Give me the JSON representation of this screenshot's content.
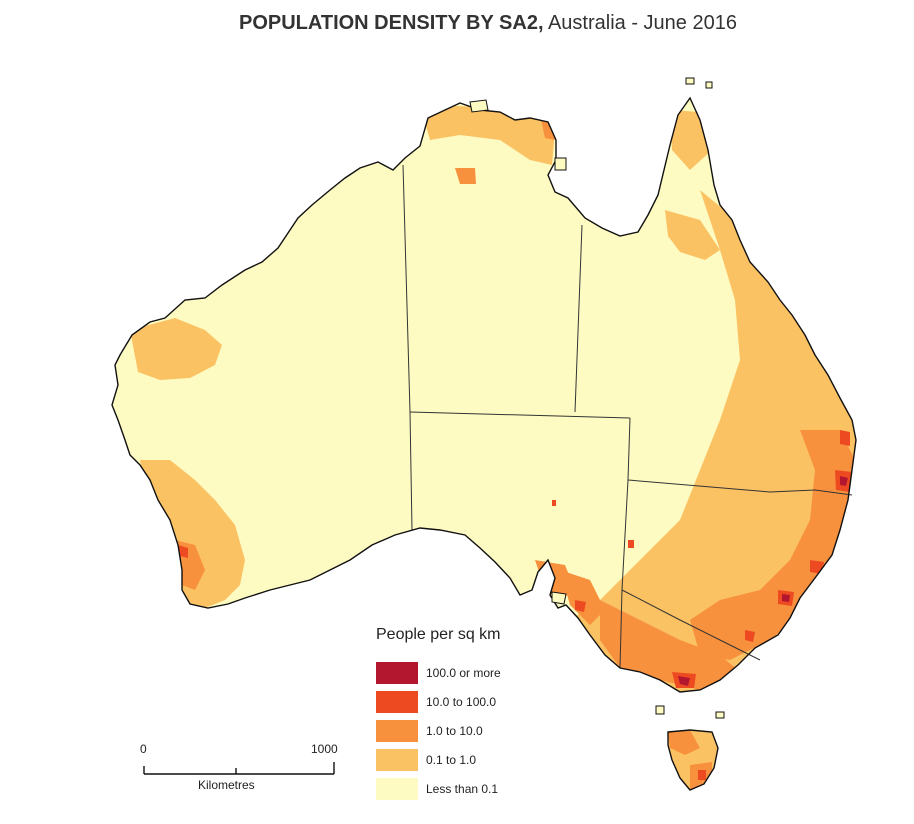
{
  "title": {
    "bold": "POPULATION DENSITY BY SA2,",
    "normal": " Australia - June 2016"
  },
  "legend": {
    "title": "People per sq km",
    "items": [
      {
        "label": "100.0 or more",
        "color": "#b3162f"
      },
      {
        "label": "10.0 to 100.0",
        "color": "#ee4a22"
      },
      {
        "label": "1.0 to 10.0",
        "color": "#f7913e"
      },
      {
        "label": "0.1 to 1.0",
        "color": "#fbc264"
      },
      {
        "label": "Less than 0.1",
        "color": "#fefbc2"
      }
    ]
  },
  "scale_bar": {
    "start": "0",
    "end": "1000",
    "unit": "Kilometres"
  }
}
